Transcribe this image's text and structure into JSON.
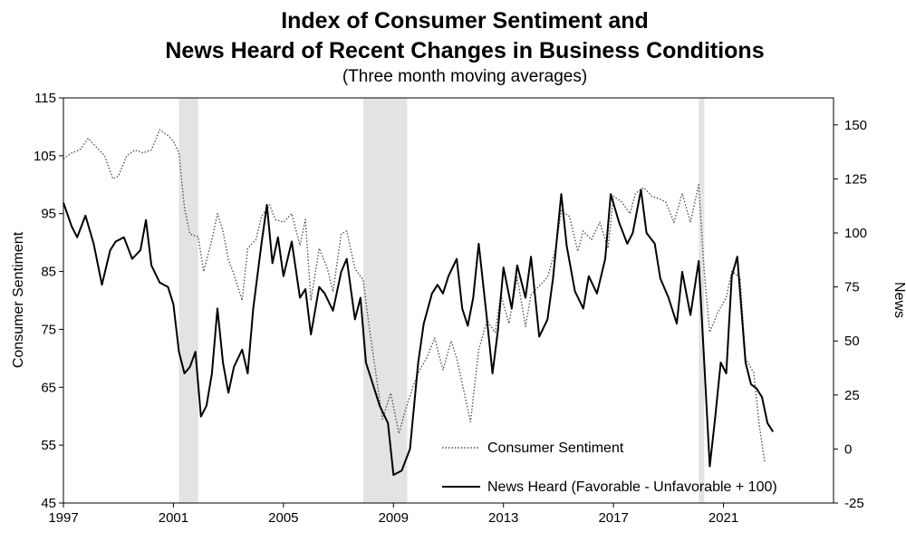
{
  "chart_data": {
    "type": "line",
    "title_line1": "Index of Consumer Sentiment and",
    "title_line2": "News Heard of Recent Changes in Business Conditions",
    "subtitle": "(Three month moving averages)",
    "ylabel_left": "Consumer Sentiment",
    "ylabel_right": "News",
    "x_ticks": [
      "1997",
      "2001",
      "2005",
      "2009",
      "2013",
      "2017",
      "2021"
    ],
    "x_range": [
      1997,
      2025
    ],
    "ylim_left": [
      45,
      115
    ],
    "left_ticks": [
      "45",
      "55",
      "65",
      "75",
      "85",
      "95",
      "105",
      "115"
    ],
    "ylim_right": [
      -25,
      162.5
    ],
    "right_ticks": [
      "-25",
      "0",
      "25",
      "50",
      "75",
      "100",
      "125",
      "150"
    ],
    "legend_position": "bottom-center",
    "recessions": [
      [
        2001.2,
        2001.9
      ],
      [
        2007.9,
        2009.5
      ],
      [
        2020.1,
        2020.3
      ]
    ],
    "series": [
      {
        "name": "Consumer Sentiment",
        "axis": "left",
        "style": "dotted",
        "color": "#555555",
        "points": [
          [
            1997.0,
            104.5
          ],
          [
            1997.3,
            105.5
          ],
          [
            1997.6,
            106.0
          ],
          [
            1997.9,
            108.0
          ],
          [
            1998.2,
            106.5
          ],
          [
            1998.5,
            105.0
          ],
          [
            1998.8,
            101.0
          ],
          [
            1999.0,
            101.5
          ],
          [
            1999.3,
            105.0
          ],
          [
            1999.6,
            106.0
          ],
          [
            1999.9,
            105.5
          ],
          [
            2000.2,
            106.0
          ],
          [
            2000.5,
            109.5
          ],
          [
            2000.8,
            108.5
          ],
          [
            2001.0,
            107.5
          ],
          [
            2001.2,
            105.5
          ],
          [
            2001.4,
            96.0
          ],
          [
            2001.6,
            91.5
          ],
          [
            2001.9,
            91.0
          ],
          [
            2002.1,
            85.0
          ],
          [
            2002.4,
            90.5
          ],
          [
            2002.6,
            95.0
          ],
          [
            2002.8,
            92.0
          ],
          [
            2003.0,
            87.0
          ],
          [
            2003.2,
            84.5
          ],
          [
            2003.5,
            80.0
          ],
          [
            2003.7,
            89.0
          ],
          [
            2004.0,
            90.5
          ],
          [
            2004.2,
            94.5
          ],
          [
            2004.5,
            96.5
          ],
          [
            2004.7,
            94.0
          ],
          [
            2005.0,
            93.5
          ],
          [
            2005.3,
            95.0
          ],
          [
            2005.6,
            89.5
          ],
          [
            2005.8,
            94.0
          ],
          [
            2006.0,
            80.0
          ],
          [
            2006.3,
            89.0
          ],
          [
            2006.6,
            85.5
          ],
          [
            2006.8,
            81.5
          ],
          [
            2007.1,
            91.5
          ],
          [
            2007.3,
            92.0
          ],
          [
            2007.6,
            85.5
          ],
          [
            2007.9,
            83.5
          ],
          [
            2008.1,
            76.0
          ],
          [
            2008.4,
            66.0
          ],
          [
            2008.6,
            59.5
          ],
          [
            2008.9,
            64.0
          ],
          [
            2009.2,
            57.0
          ],
          [
            2009.4,
            60.5
          ],
          [
            2009.7,
            65.0
          ],
          [
            2009.9,
            67.5
          ],
          [
            2010.2,
            70.0
          ],
          [
            2010.5,
            73.5
          ],
          [
            2010.8,
            68.0
          ],
          [
            2011.1,
            73.0
          ],
          [
            2011.3,
            70.0
          ],
          [
            2011.6,
            63.5
          ],
          [
            2011.8,
            59.0
          ],
          [
            2012.1,
            71.5
          ],
          [
            2012.4,
            76.5
          ],
          [
            2012.7,
            74.5
          ],
          [
            2012.9,
            81.0
          ],
          [
            2013.2,
            76.0
          ],
          [
            2013.5,
            84.0
          ],
          [
            2013.8,
            75.5
          ],
          [
            2014.0,
            81.0
          ],
          [
            2014.3,
            82.5
          ],
          [
            2014.6,
            84.0
          ],
          [
            2014.9,
            89.0
          ],
          [
            2015.1,
            95.5
          ],
          [
            2015.4,
            94.5
          ],
          [
            2015.7,
            88.5
          ],
          [
            2015.9,
            92.0
          ],
          [
            2016.2,
            90.5
          ],
          [
            2016.5,
            93.5
          ],
          [
            2016.8,
            89.0
          ],
          [
            2017.0,
            98.0
          ],
          [
            2017.3,
            97.0
          ],
          [
            2017.6,
            95.0
          ],
          [
            2017.8,
            98.5
          ],
          [
            2018.1,
            99.5
          ],
          [
            2018.4,
            98.0
          ],
          [
            2018.7,
            97.5
          ],
          [
            2018.9,
            97.0
          ],
          [
            2019.2,
            93.5
          ],
          [
            2019.5,
            98.5
          ],
          [
            2019.8,
            93.5
          ],
          [
            2020.1,
            100.0
          ],
          [
            2020.3,
            85.0
          ],
          [
            2020.5,
            74.5
          ],
          [
            2020.8,
            78.0
          ],
          [
            2021.1,
            80.5
          ],
          [
            2021.3,
            85.0
          ],
          [
            2021.6,
            84.0
          ],
          [
            2021.8,
            70.0
          ],
          [
            2022.1,
            67.5
          ],
          [
            2022.3,
            58.5
          ],
          [
            2022.5,
            52.0
          ]
        ]
      },
      {
        "name": "News Heard (Favorable - Unfavorable + 100)",
        "axis": "right",
        "style": "solid",
        "color": "#000000",
        "points": [
          [
            1997.0,
            114.0
          ],
          [
            1997.3,
            103.0
          ],
          [
            1997.5,
            98.0
          ],
          [
            1997.8,
            108.0
          ],
          [
            1998.1,
            95.0
          ],
          [
            1998.4,
            76.0
          ],
          [
            1998.7,
            92.0
          ],
          [
            1998.9,
            96.0
          ],
          [
            1999.2,
            98.0
          ],
          [
            1999.5,
            88.0
          ],
          [
            1999.8,
            92.0
          ],
          [
            2000.0,
            106.0
          ],
          [
            2000.2,
            85.0
          ],
          [
            2000.5,
            77.0
          ],
          [
            2000.8,
            75.0
          ],
          [
            2001.0,
            67.0
          ],
          [
            2001.2,
            45.0
          ],
          [
            2001.4,
            35.0
          ],
          [
            2001.6,
            38.0
          ],
          [
            2001.8,
            45.0
          ],
          [
            2002.0,
            15.0
          ],
          [
            2002.2,
            20.0
          ],
          [
            2002.4,
            35.0
          ],
          [
            2002.6,
            65.0
          ],
          [
            2002.8,
            40.0
          ],
          [
            2003.0,
            26.0
          ],
          [
            2003.2,
            38.0
          ],
          [
            2003.5,
            46.0
          ],
          [
            2003.7,
            35.0
          ],
          [
            2003.9,
            65.0
          ],
          [
            2004.2,
            95.0
          ],
          [
            2004.4,
            113.0
          ],
          [
            2004.6,
            86.0
          ],
          [
            2004.8,
            98.0
          ],
          [
            2005.0,
            80.0
          ],
          [
            2005.3,
            96.0
          ],
          [
            2005.6,
            70.0
          ],
          [
            2005.8,
            74.0
          ],
          [
            2006.0,
            53.0
          ],
          [
            2006.3,
            75.0
          ],
          [
            2006.5,
            72.0
          ],
          [
            2006.8,
            64.0
          ],
          [
            2007.1,
            82.0
          ],
          [
            2007.3,
            88.0
          ],
          [
            2007.6,
            60.0
          ],
          [
            2007.8,
            70.0
          ],
          [
            2008.0,
            40.0
          ],
          [
            2008.2,
            32.0
          ],
          [
            2008.5,
            20.0
          ],
          [
            2008.8,
            12.0
          ],
          [
            2009.0,
            -12.0
          ],
          [
            2009.3,
            -10.0
          ],
          [
            2009.6,
            0.0
          ],
          [
            2009.9,
            40.0
          ],
          [
            2010.1,
            58.0
          ],
          [
            2010.4,
            72.0
          ],
          [
            2010.6,
            76.0
          ],
          [
            2010.8,
            72.0
          ],
          [
            2011.0,
            80.0
          ],
          [
            2011.3,
            88.0
          ],
          [
            2011.5,
            65.0
          ],
          [
            2011.7,
            57.0
          ],
          [
            2011.9,
            70.0
          ],
          [
            2012.1,
            95.0
          ],
          [
            2012.4,
            60.0
          ],
          [
            2012.6,
            35.0
          ],
          [
            2012.8,
            55.0
          ],
          [
            2013.0,
            84.0
          ],
          [
            2013.3,
            65.0
          ],
          [
            2013.5,
            85.0
          ],
          [
            2013.8,
            70.0
          ],
          [
            2014.0,
            89.0
          ],
          [
            2014.3,
            52.0
          ],
          [
            2014.6,
            60.0
          ],
          [
            2014.8,
            79.0
          ],
          [
            2015.1,
            118.0
          ],
          [
            2015.3,
            94.0
          ],
          [
            2015.6,
            73.0
          ],
          [
            2015.9,
            65.0
          ],
          [
            2016.1,
            80.0
          ],
          [
            2016.4,
            72.0
          ],
          [
            2016.7,
            88.0
          ],
          [
            2016.9,
            118.0
          ],
          [
            2017.2,
            105.0
          ],
          [
            2017.5,
            95.0
          ],
          [
            2017.7,
            100.0
          ],
          [
            2018.0,
            120.0
          ],
          [
            2018.2,
            100.0
          ],
          [
            2018.5,
            95.0
          ],
          [
            2018.7,
            79.0
          ],
          [
            2019.0,
            70.0
          ],
          [
            2019.3,
            58.0
          ],
          [
            2019.5,
            82.0
          ],
          [
            2019.8,
            62.0
          ],
          [
            2020.1,
            87.0
          ],
          [
            2020.3,
            40.0
          ],
          [
            2020.5,
            -8.0
          ],
          [
            2020.7,
            15.0
          ],
          [
            2020.9,
            40.0
          ],
          [
            2021.1,
            35.0
          ],
          [
            2021.3,
            80.0
          ],
          [
            2021.5,
            89.0
          ],
          [
            2021.8,
            40.0
          ],
          [
            2022.0,
            30.0
          ],
          [
            2022.2,
            28.0
          ],
          [
            2022.4,
            24.0
          ],
          [
            2022.6,
            12.0
          ],
          [
            2022.8,
            8.0
          ]
        ]
      }
    ]
  }
}
